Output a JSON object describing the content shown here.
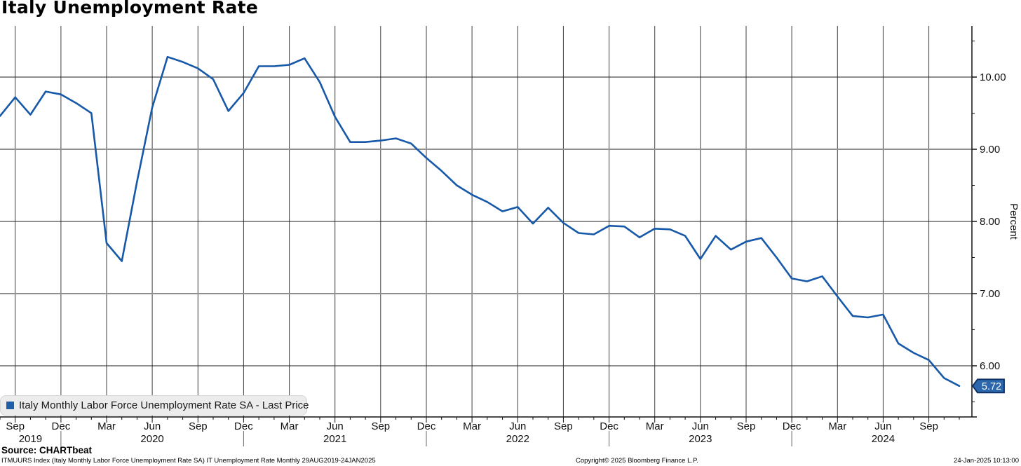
{
  "title": "Italy Unemployment Rate",
  "legend": {
    "marker_color": "#1f5fa8",
    "label": "Italy Monthly Labor Force Unemployment Rate SA - Last Price"
  },
  "last_price_badge": {
    "value": "5.72",
    "bg": "#2a67ad",
    "border": "#0d2c5f",
    "text_color": "#ffffff"
  },
  "y_axis": {
    "title": "Percent",
    "majors": [
      {
        "value": 10,
        "label": "10.00"
      },
      {
        "value": 9,
        "label": "9.00"
      },
      {
        "value": 8,
        "label": "8.00"
      },
      {
        "value": 7,
        "label": "7.00"
      },
      {
        "value": 6,
        "label": "6.00"
      }
    ],
    "minor_values": [
      10.5,
      9.5,
      8.5,
      7.5,
      6.5,
      5.5
    ],
    "soft_grid_values": [
      9,
      7
    ]
  },
  "x_axis": {
    "month_ticks": [
      {
        "index": 1,
        "label": "Sep"
      },
      {
        "index": 4,
        "label": "Dec"
      },
      {
        "index": 7,
        "label": "Mar"
      },
      {
        "index": 10,
        "label": "Jun"
      },
      {
        "index": 13,
        "label": "Sep"
      },
      {
        "index": 16,
        "label": "Dec"
      },
      {
        "index": 19,
        "label": "Mar"
      },
      {
        "index": 22,
        "label": "Jun"
      },
      {
        "index": 25,
        "label": "Sep"
      },
      {
        "index": 28,
        "label": "Dec"
      },
      {
        "index": 31,
        "label": "Mar"
      },
      {
        "index": 34,
        "label": "Jun"
      },
      {
        "index": 37,
        "label": "Sep"
      },
      {
        "index": 40,
        "label": "Dec"
      },
      {
        "index": 43,
        "label": "Mar"
      },
      {
        "index": 46,
        "label": "Jun"
      },
      {
        "index": 49,
        "label": "Sep"
      },
      {
        "index": 52,
        "label": "Dec"
      },
      {
        "index": 55,
        "label": "Mar"
      },
      {
        "index": 58,
        "label": "Jun"
      },
      {
        "index": 61,
        "label": "Sep"
      }
    ],
    "year_labels": [
      {
        "index": 2,
        "label": "2019"
      },
      {
        "index": 10,
        "label": "2020"
      },
      {
        "index": 22,
        "label": "2021"
      },
      {
        "index": 34,
        "label": "2022"
      },
      {
        "index": 46,
        "label": "2023"
      },
      {
        "index": 58,
        "label": "2024"
      }
    ],
    "year_separator_indices": [
      4,
      16,
      28,
      40,
      52
    ]
  },
  "source_line": "Source: CHARTbeat",
  "footer": {
    "left": "ITMUURS Index (Italy Monthly Labor Force Unemployment Rate SA) IT Unemployment Rate  Monthly 29AUG2019-24JAN2025",
    "center": "Copyright© 2025 Bloomberg Finance L.P.",
    "right": "24-Jan-2025 10:13:00"
  },
  "chart_data": {
    "type": "line",
    "title": "Italy Unemployment Rate",
    "xlabel": "",
    "ylabel": "Percent",
    "ylim": [
      5.29,
      10.71
    ],
    "grid": true,
    "legend_position": "bottom-left",
    "x": [
      "Aug 2019",
      "Sep 2019",
      "Oct 2019",
      "Nov 2019",
      "Dec 2019",
      "Jan 2020",
      "Feb 2020",
      "Mar 2020",
      "Apr 2020",
      "May 2020",
      "Jun 2020",
      "Jul 2020",
      "Aug 2020",
      "Sep 2020",
      "Oct 2020",
      "Nov 2020",
      "Dec 2020",
      "Jan 2021",
      "Feb 2021",
      "Mar 2021",
      "Apr 2021",
      "May 2021",
      "Jun 2021",
      "Jul 2021",
      "Aug 2021",
      "Sep 2021",
      "Oct 2021",
      "Nov 2021",
      "Dec 2021",
      "Jan 2022",
      "Feb 2022",
      "Mar 2022",
      "Apr 2022",
      "May 2022",
      "Jun 2022",
      "Jul 2022",
      "Aug 2022",
      "Sep 2022",
      "Oct 2022",
      "Nov 2022",
      "Dec 2022",
      "Jan 2023",
      "Feb 2023",
      "Mar 2023",
      "Apr 2023",
      "May 2023",
      "Jun 2023",
      "Jul 2023",
      "Aug 2023",
      "Sep 2023",
      "Oct 2023",
      "Nov 2023",
      "Dec 2023",
      "Jan 2024",
      "Feb 2024",
      "Mar 2024",
      "Apr 2024",
      "May 2024",
      "Jun 2024",
      "Jul 2024",
      "Aug 2024",
      "Sep 2024",
      "Oct 2024",
      "Nov 2024"
    ],
    "series": [
      {
        "name": "Italy Monthly Labor Force Unemployment Rate SA - Last Price",
        "color": "#1759a8",
        "values": [
          9.46,
          9.72,
          9.48,
          9.8,
          9.76,
          9.64,
          9.5,
          7.7,
          7.45,
          8.55,
          9.58,
          10.28,
          10.21,
          10.12,
          9.97,
          9.53,
          9.78,
          10.15,
          10.15,
          10.17,
          10.26,
          9.93,
          9.45,
          9.1,
          9.1,
          9.12,
          9.15,
          9.08,
          8.88,
          8.7,
          8.5,
          8.37,
          8.27,
          8.14,
          8.2,
          7.97,
          8.19,
          7.98,
          7.84,
          7.82,
          7.94,
          7.93,
          7.78,
          7.9,
          7.89,
          7.8,
          7.48,
          7.8,
          7.61,
          7.72,
          7.77,
          7.5,
          7.21,
          7.17,
          7.24,
          6.96,
          6.69,
          6.67,
          6.71,
          6.31,
          6.18,
          6.08,
          5.83,
          5.72
        ]
      }
    ],
    "last_value": 5.72
  }
}
